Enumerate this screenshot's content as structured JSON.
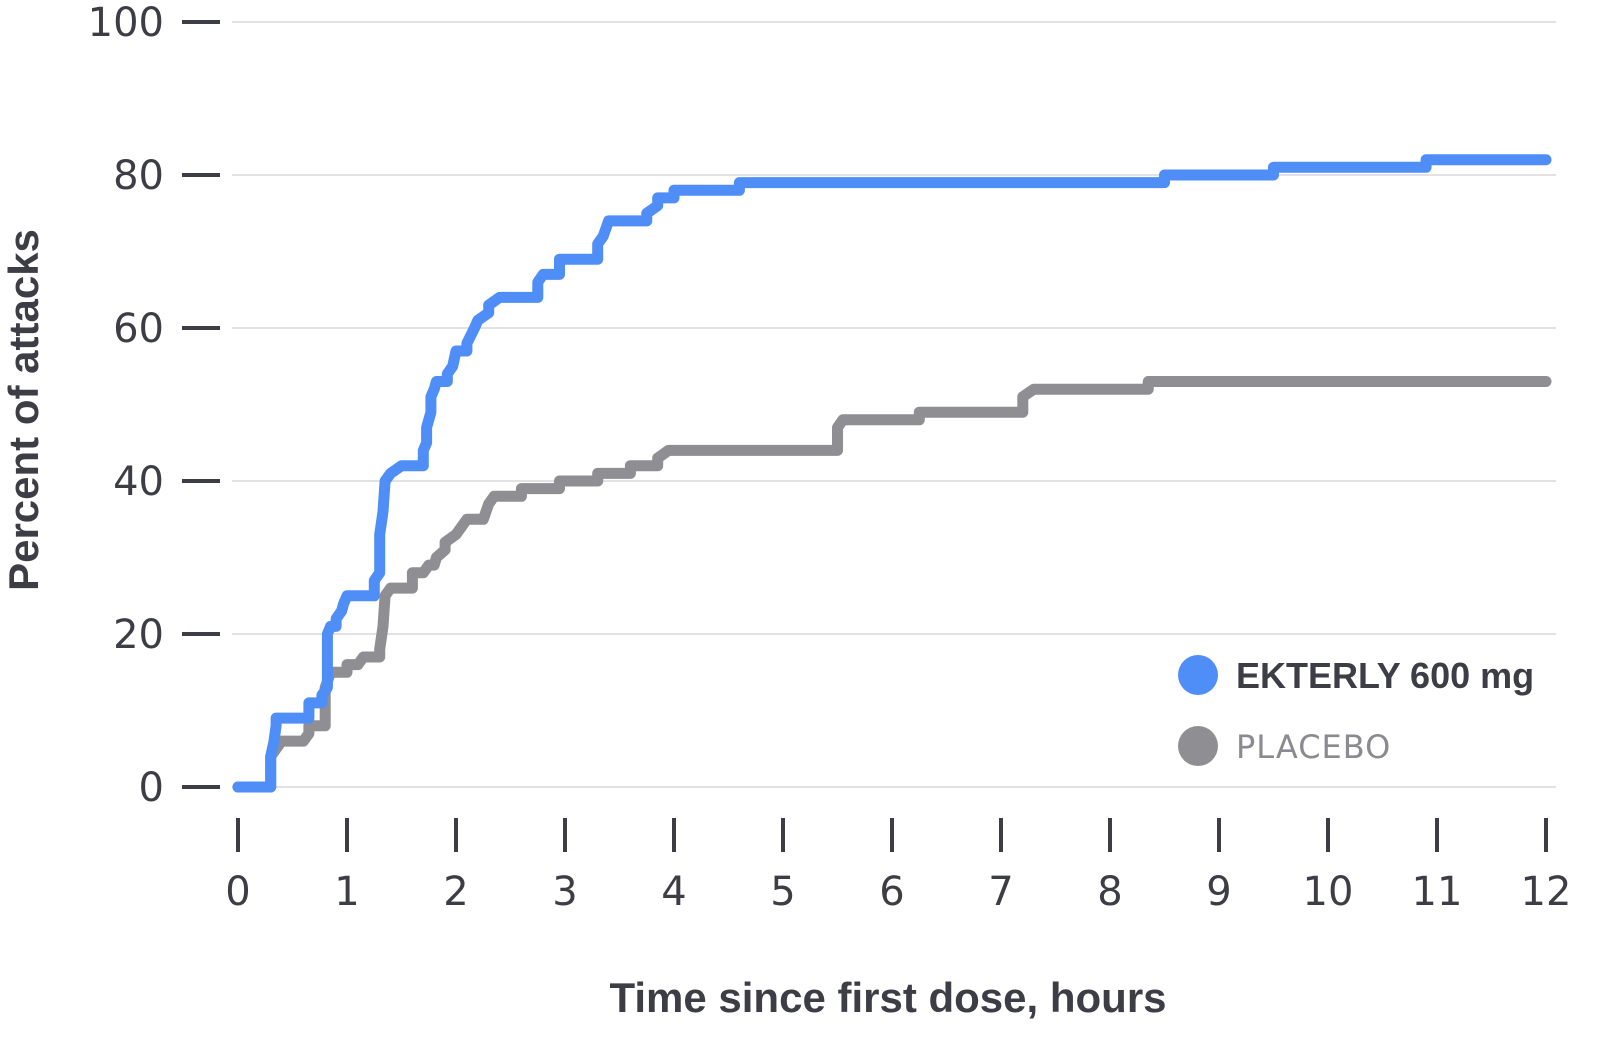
{
  "chart_data": {
    "type": "line",
    "title": "",
    "xlabel": "Time since first dose, hours",
    "ylabel": "Percent of attacks",
    "xlim": [
      0,
      12
    ],
    "ylim": [
      0,
      100
    ],
    "x_ticks": [
      "0",
      "1",
      "2",
      "3",
      "4",
      "5",
      "6",
      "7",
      "8",
      "9",
      "10",
      "11",
      "12"
    ],
    "y_ticks": [
      "0",
      "20",
      "40",
      "60",
      "80",
      "100"
    ],
    "grid": "horizontal",
    "legend_position": "bottom-right",
    "step": true,
    "series": [
      {
        "name": "EKTERLY 600 mg",
        "color": "#4f8ef7",
        "points": [
          [
            0,
            0
          ],
          [
            0.3,
            0
          ],
          [
            0.3,
            4
          ],
          [
            0.33,
            6
          ],
          [
            0.35,
            8
          ],
          [
            0.35,
            9
          ],
          [
            0.65,
            9
          ],
          [
            0.65,
            11
          ],
          [
            0.77,
            11
          ],
          [
            0.77,
            12
          ],
          [
            0.82,
            13
          ],
          [
            0.82,
            20
          ],
          [
            0.85,
            21
          ],
          [
            0.9,
            21
          ],
          [
            0.9,
            22
          ],
          [
            0.95,
            23
          ],
          [
            0.97,
            24
          ],
          [
            1.0,
            25
          ],
          [
            1.25,
            25
          ],
          [
            1.25,
            27
          ],
          [
            1.3,
            28
          ],
          [
            1.3,
            33
          ],
          [
            1.33,
            36
          ],
          [
            1.35,
            40
          ],
          [
            1.4,
            41
          ],
          [
            1.5,
            42
          ],
          [
            1.7,
            42
          ],
          [
            1.7,
            44
          ],
          [
            1.73,
            45
          ],
          [
            1.73,
            47
          ],
          [
            1.77,
            49
          ],
          [
            1.77,
            51
          ],
          [
            1.8,
            52
          ],
          [
            1.82,
            53
          ],
          [
            1.92,
            53
          ],
          [
            1.92,
            54
          ],
          [
            1.97,
            55
          ],
          [
            2.0,
            57
          ],
          [
            2.1,
            57
          ],
          [
            2.1,
            58
          ],
          [
            2.17,
            60
          ],
          [
            2.2,
            61
          ],
          [
            2.3,
            62
          ],
          [
            2.3,
            63
          ],
          [
            2.4,
            64
          ],
          [
            2.75,
            64
          ],
          [
            2.75,
            66
          ],
          [
            2.8,
            67
          ],
          [
            2.95,
            67
          ],
          [
            2.95,
            69
          ],
          [
            3.0,
            69
          ],
          [
            3.3,
            69
          ],
          [
            3.3,
            71
          ],
          [
            3.35,
            72
          ],
          [
            3.4,
            74
          ],
          [
            3.45,
            74
          ],
          [
            3.75,
            74
          ],
          [
            3.75,
            75
          ],
          [
            3.85,
            76
          ],
          [
            3.85,
            77
          ],
          [
            4.0,
            77
          ],
          [
            4.0,
            78
          ],
          [
            4.6,
            78
          ],
          [
            4.6,
            79
          ],
          [
            8.5,
            79
          ],
          [
            8.5,
            80
          ],
          [
            9.5,
            80
          ],
          [
            9.5,
            81
          ],
          [
            10.9,
            81
          ],
          [
            10.9,
            82
          ],
          [
            12.0,
            82
          ]
        ]
      },
      {
        "name": "PLACEBO",
        "color": "#8e8e93",
        "points": [
          [
            0,
            0
          ],
          [
            0.3,
            0
          ],
          [
            0.3,
            4
          ],
          [
            0.4,
            6
          ],
          [
            0.6,
            6
          ],
          [
            0.65,
            7
          ],
          [
            0.65,
            8
          ],
          [
            0.8,
            8
          ],
          [
            0.8,
            13
          ],
          [
            0.85,
            15
          ],
          [
            1.0,
            15
          ],
          [
            1.0,
            16
          ],
          [
            1.1,
            16
          ],
          [
            1.15,
            17
          ],
          [
            1.3,
            17
          ],
          [
            1.3,
            18
          ],
          [
            1.33,
            21
          ],
          [
            1.35,
            25
          ],
          [
            1.4,
            26
          ],
          [
            1.6,
            26
          ],
          [
            1.6,
            28
          ],
          [
            1.7,
            28
          ],
          [
            1.75,
            29
          ],
          [
            1.8,
            29
          ],
          [
            1.82,
            30
          ],
          [
            1.9,
            31
          ],
          [
            1.9,
            32
          ],
          [
            2.0,
            33
          ],
          [
            2.05,
            34
          ],
          [
            2.1,
            35
          ],
          [
            2.25,
            35
          ],
          [
            2.3,
            37
          ],
          [
            2.35,
            38
          ],
          [
            2.6,
            38
          ],
          [
            2.6,
            39
          ],
          [
            2.95,
            39
          ],
          [
            2.95,
            40
          ],
          [
            3.3,
            40
          ],
          [
            3.3,
            41
          ],
          [
            3.6,
            41
          ],
          [
            3.6,
            42
          ],
          [
            3.85,
            42
          ],
          [
            3.85,
            43
          ],
          [
            3.95,
            44
          ],
          [
            5.5,
            44
          ],
          [
            5.5,
            47
          ],
          [
            5.55,
            48
          ],
          [
            6.25,
            48
          ],
          [
            6.25,
            49
          ],
          [
            7.2,
            49
          ],
          [
            7.2,
            51
          ],
          [
            7.3,
            52
          ],
          [
            8.35,
            52
          ],
          [
            8.35,
            53
          ],
          [
            12.0,
            53
          ]
        ]
      }
    ]
  }
}
